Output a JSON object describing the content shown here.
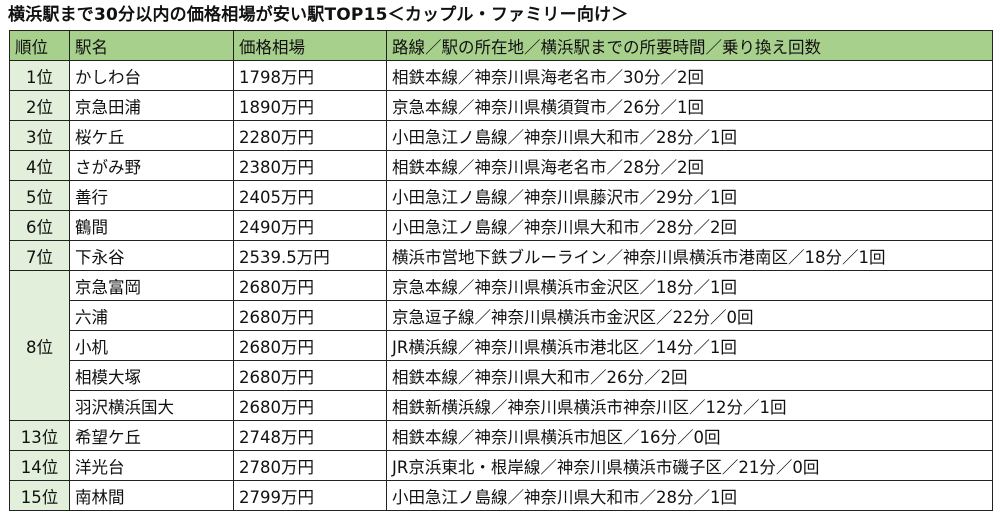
{
  "title": "横浜駅まで30分以内の価格相場が安い駅TOP15＜カップル・ファミリー向け＞",
  "headers": {
    "rank": "順位",
    "station": "駅名",
    "price": "価格相場",
    "details": "路線／駅の所在地／横浜駅までの所要時間／乗り換え回数"
  },
  "rows": [
    {
      "rank": "1位",
      "station": "かしわ台",
      "price": "1798万円",
      "details": "相鉄本線／神奈川県海老名市／30分／2回"
    },
    {
      "rank": "2位",
      "station": "京急田浦",
      "price": "1890万円",
      "details": "京急本線／神奈川県横須賀市／26分／1回"
    },
    {
      "rank": "3位",
      "station": "桜ケ丘",
      "price": "2280万円",
      "details": "小田急江ノ島線／神奈川県大和市／28分／1回"
    },
    {
      "rank": "4位",
      "station": "さがみ野",
      "price": "2380万円",
      "details": "相鉄本線／神奈川県海老名市／28分／2回"
    },
    {
      "rank": "5位",
      "station": "善行",
      "price": "2405万円",
      "details": "小田急江ノ島線／神奈川県藤沢市／29分／1回"
    },
    {
      "rank": "6位",
      "station": "鶴間",
      "price": "2490万円",
      "details": "小田急江ノ島線／神奈川県大和市／28分／2回"
    },
    {
      "rank": "7位",
      "station": "下永谷",
      "price": "2539.5万円",
      "details": "横浜市営地下鉄ブルーライン／神奈川県横浜市港南区／18分／1回"
    },
    {
      "rank": "8位",
      "station": "京急富岡",
      "price": "2680万円",
      "details": "京急本線／神奈川県横浜市金沢区／18分／1回"
    },
    {
      "station": "六浦",
      "price": "2680万円",
      "details": "京急逗子線／神奈川県横浜市金沢区／22分／0回"
    },
    {
      "station": "小机",
      "price": "2680万円",
      "details": "JR横浜線／神奈川県横浜市港北区／14分／1回"
    },
    {
      "station": "相模大塚",
      "price": "2680万円",
      "details": "相鉄本線／神奈川県大和市／26分／2回"
    },
    {
      "station": "羽沢横浜国大",
      "price": "2680万円",
      "details": "相鉄新横浜線／神奈川県横浜市神奈川区／12分／1回"
    },
    {
      "rank": "13位",
      "station": "希望ケ丘",
      "price": "2748万円",
      "details": "相鉄本線／神奈川県横浜市旭区／16分／0回"
    },
    {
      "rank": "14位",
      "station": "洋光台",
      "price": "2780万円",
      "details": "JR京浜東北・根岸線／神奈川県横浜市磯子区／21分／0回"
    },
    {
      "rank": "15位",
      "station": "南林間",
      "price": "2799万円",
      "details": "小田急江ノ島線／神奈川県大和市／28分／1回"
    }
  ]
}
